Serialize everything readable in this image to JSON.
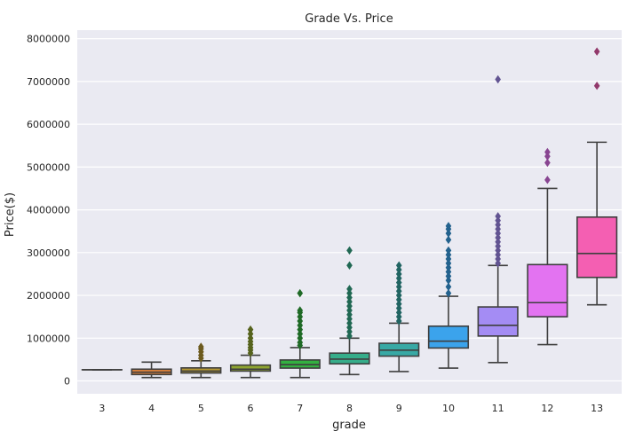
{
  "chart_data": {
    "type": "box",
    "title": "Grade Vs. Price",
    "xlabel": "grade",
    "ylabel": "Price($)",
    "ylim": [
      -300000,
      8200000
    ],
    "yticks": [
      0,
      1000000,
      2000000,
      3000000,
      4000000,
      5000000,
      6000000,
      7000000,
      8000000
    ],
    "ytick_labels": [
      "0",
      "1000000",
      "2000000",
      "3000000",
      "4000000",
      "5000000",
      "6000000",
      "7000000",
      "8000000"
    ],
    "grid": true,
    "background": "#eaeaf2",
    "categories": [
      "3",
      "4",
      "5",
      "6",
      "7",
      "8",
      "9",
      "10",
      "11",
      "12",
      "13"
    ],
    "boxes": [
      {
        "category": "3",
        "whislo": 262000,
        "q1": 262000,
        "med": 262000,
        "q3": 262000,
        "whishi": 262000,
        "color": "#f77189",
        "fliers": []
      },
      {
        "category": "4",
        "whislo": 80000,
        "q1": 150000,
        "med": 205000,
        "q3": 275000,
        "whishi": 440000,
        "color": "#e1823a",
        "fliers": []
      },
      {
        "category": "5",
        "whislo": 80000,
        "q1": 185000,
        "med": 230000,
        "q3": 305000,
        "whishi": 470000,
        "color": "#b59833",
        "fliers": [
          530000,
          600000,
          680000,
          750000,
          800000
        ]
      },
      {
        "category": "6",
        "whislo": 80000,
        "q1": 230000,
        "med": 275000,
        "q3": 370000,
        "whishi": 600000,
        "color": "#8fa531",
        "fliers": [
          650000,
          720000,
          780000,
          850000,
          920000,
          1000000,
          1100000,
          1200000
        ]
      },
      {
        "category": "7",
        "whislo": 80000,
        "q1": 300000,
        "med": 380000,
        "q3": 490000,
        "whishi": 780000,
        "color": "#33b040",
        "fliers": [
          830000,
          900000,
          1000000,
          1100000,
          1200000,
          1300000,
          1400000,
          1500000,
          1600000,
          1650000,
          2050000
        ]
      },
      {
        "category": "8",
        "whislo": 150000,
        "q1": 400000,
        "med": 510000,
        "q3": 650000,
        "whishi": 1000000,
        "color": "#36ad8a",
        "fliers": [
          1050000,
          1150000,
          1250000,
          1350000,
          1450000,
          1550000,
          1650000,
          1750000,
          1850000,
          1950000,
          2050000,
          2150000,
          2700000,
          3050000
        ]
      },
      {
        "category": "9",
        "whislo": 220000,
        "q1": 580000,
        "med": 720000,
        "q3": 880000,
        "whishi": 1350000,
        "color": "#38a9a5",
        "fliers": [
          1400000,
          1500000,
          1600000,
          1700000,
          1800000,
          1900000,
          2000000,
          2100000,
          2200000,
          2300000,
          2400000,
          2500000,
          2600000,
          2700000
        ]
      },
      {
        "category": "10",
        "whislo": 300000,
        "q1": 770000,
        "med": 930000,
        "q3": 1280000,
        "whishi": 1980000,
        "color": "#3ba3ec",
        "fliers": [
          2050000,
          2200000,
          2350000,
          2450000,
          2550000,
          2650000,
          2750000,
          2850000,
          2950000,
          3050000,
          3300000,
          3450000,
          3550000,
          3620000
        ]
      },
      {
        "category": "11",
        "whislo": 430000,
        "q1": 1050000,
        "med": 1300000,
        "q3": 1730000,
        "whishi": 2700000,
        "color": "#a48cf4",
        "fliers": [
          2750000,
          2850000,
          2950000,
          3050000,
          3150000,
          3250000,
          3350000,
          3450000,
          3550000,
          3650000,
          3750000,
          3850000,
          7050000
        ]
      },
      {
        "category": "12",
        "whislo": 850000,
        "q1": 1500000,
        "med": 1830000,
        "q3": 2720000,
        "whishi": 4500000,
        "color": "#e373f1",
        "fliers": [
          4700000,
          5100000,
          5250000,
          5350000
        ]
      },
      {
        "category": "13",
        "whislo": 1780000,
        "q1": 2420000,
        "med": 2980000,
        "q3": 3830000,
        "whishi": 5580000,
        "color": "#f45fb2",
        "fliers": [
          6900000,
          7700000
        ]
      }
    ]
  }
}
